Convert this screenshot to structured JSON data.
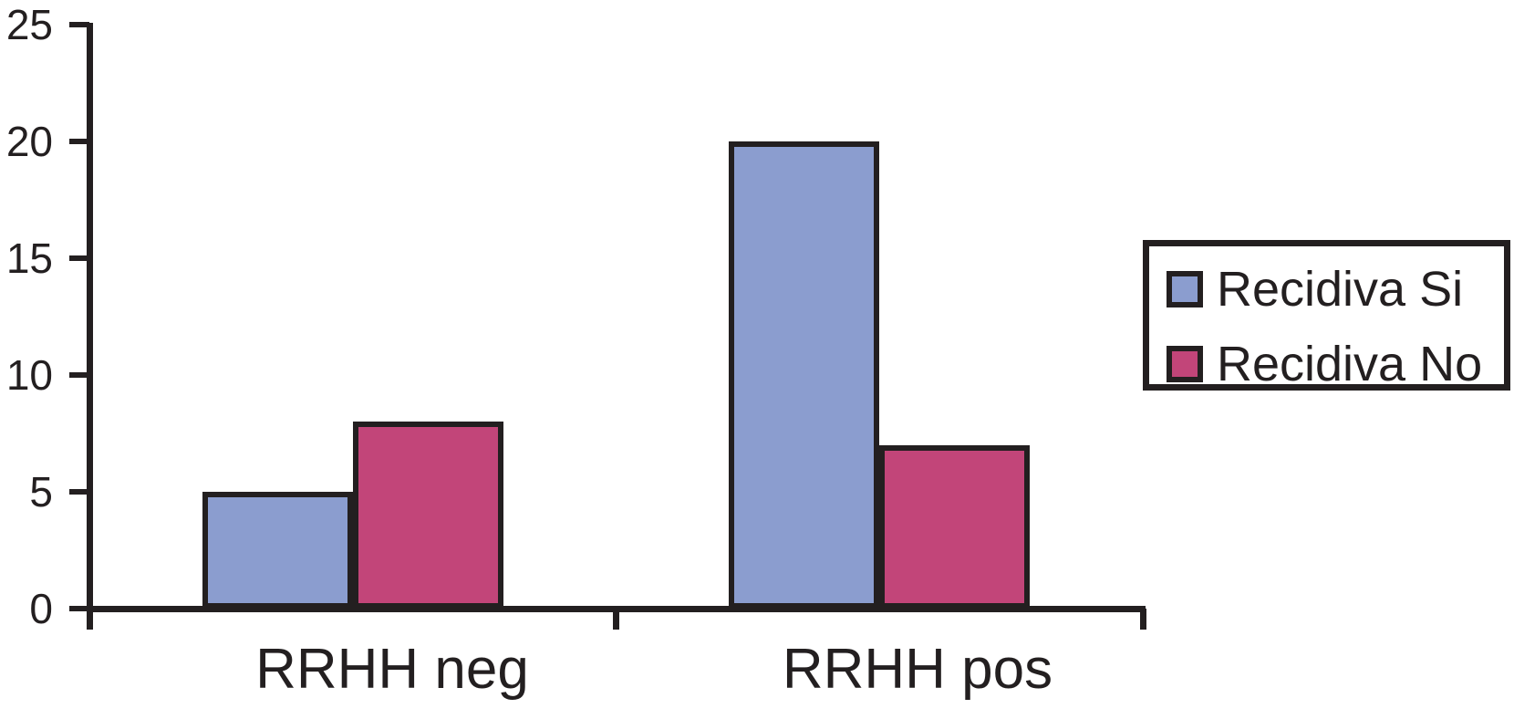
{
  "chart_data": {
    "type": "bar",
    "title": "",
    "xlabel": "",
    "ylabel": "",
    "categories": [
      "RRHH neg",
      "RRHH pos"
    ],
    "series": [
      {
        "name": "Recidiva Si",
        "color": "#8B9DCF",
        "values": [
          5,
          20
        ]
      },
      {
        "name": "Recidiva No",
        "color": "#C24579",
        "values": [
          8,
          7
        ]
      }
    ],
    "ylim": [
      0,
      25
    ],
    "yticks": [
      0,
      5,
      10,
      15,
      20,
      25
    ],
    "grid": false,
    "legend_position": "right",
    "colors": {
      "ink": "#231F20",
      "background": "#FFFFFF"
    }
  }
}
